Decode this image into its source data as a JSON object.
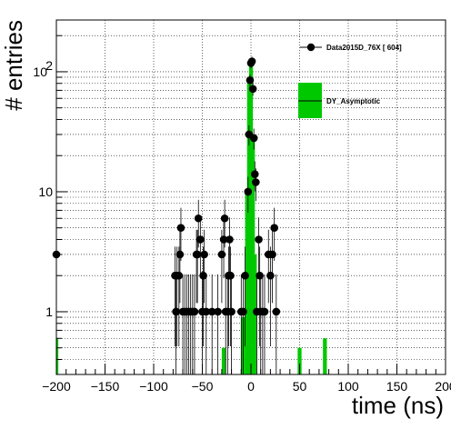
{
  "chart_data": {
    "type": "scatter",
    "xlabel": "time (ns)",
    "ylabel": "# entries",
    "xlim": [
      -200,
      200
    ],
    "ylim": [
      0.3,
      270
    ],
    "log_y": true,
    "grid": true,
    "x_ticks": [
      -200,
      -150,
      -100,
      -50,
      0,
      50,
      100,
      150,
      200
    ],
    "y_ticks": [
      {
        "value": 1,
        "label": "1"
      },
      {
        "value": 10,
        "label": "10"
      },
      {
        "value": 100,
        "label": "10",
        "exp": "2"
      }
    ],
    "legend_position": "top-right",
    "legend": [
      {
        "label": "Data2015D_76X [      604]",
        "kind": "data"
      },
      {
        "label": "DY_Asymptotic",
        "kind": "mc"
      }
    ],
    "series": [
      {
        "name": "Data2015D_76X",
        "kind": "points",
        "color": "#000000",
        "points": [
          {
            "x": -200,
            "y": 3
          },
          {
            "x": -78,
            "y": 2
          },
          {
            "x": -77,
            "y": 1
          },
          {
            "x": -76,
            "y": 2
          },
          {
            "x": -74,
            "y": 2
          },
          {
            "x": -73,
            "y": 3
          },
          {
            "x": -72,
            "y": 5
          },
          {
            "x": -70,
            "y": 1
          },
          {
            "x": -68,
            "y": 1
          },
          {
            "x": -66,
            "y": 1
          },
          {
            "x": -64,
            "y": 1
          },
          {
            "x": -62,
            "y": 1
          },
          {
            "x": -60,
            "y": 1
          },
          {
            "x": -58,
            "y": 1
          },
          {
            "x": -56,
            "y": 3
          },
          {
            "x": -55,
            "y": 3
          },
          {
            "x": -54,
            "y": 6
          },
          {
            "x": -52,
            "y": 4
          },
          {
            "x": -50,
            "y": 1
          },
          {
            "x": -49,
            "y": 2
          },
          {
            "x": -48,
            "y": 3
          },
          {
            "x": -46,
            "y": 1
          },
          {
            "x": -40,
            "y": 1
          },
          {
            "x": -34,
            "y": 1
          },
          {
            "x": -30,
            "y": 3
          },
          {
            "x": -28,
            "y": 4
          },
          {
            "x": -27,
            "y": 6
          },
          {
            "x": -26,
            "y": 1
          },
          {
            "x": -24,
            "y": 1
          },
          {
            "x": -23,
            "y": 2
          },
          {
            "x": -22,
            "y": 4
          },
          {
            "x": -21,
            "y": 2
          },
          {
            "x": -20,
            "y": 1
          },
          {
            "x": -10,
            "y": 1
          },
          {
            "x": -8,
            "y": 1
          },
          {
            "x": -6,
            "y": 2
          },
          {
            "x": -3,
            "y": 10
          },
          {
            "x": -2,
            "y": 30
          },
          {
            "x": -1,
            "y": 85
          },
          {
            "x": 0,
            "y": 118
          },
          {
            "x": 1,
            "y": 122
          },
          {
            "x": 2,
            "y": 72
          },
          {
            "x": 3,
            "y": 28
          },
          {
            "x": 4,
            "y": 14
          },
          {
            "x": 5,
            "y": 12
          },
          {
            "x": 6,
            "y": 1
          },
          {
            "x": 8,
            "y": 4
          },
          {
            "x": 9,
            "y": 2
          },
          {
            "x": 10,
            "y": 1
          },
          {
            "x": 12,
            "y": 1
          },
          {
            "x": 14,
            "y": 1
          },
          {
            "x": 18,
            "y": 3
          },
          {
            "x": 20,
            "y": 2
          },
          {
            "x": 22,
            "y": 3
          },
          {
            "x": 24,
            "y": 5
          },
          {
            "x": 26,
            "y": 1
          }
        ]
      },
      {
        "name": "DY_Asymptotic",
        "kind": "histogram",
        "color": "#00c800",
        "bin_width": 4,
        "bins": [
          {
            "x": -200,
            "y": 0.6
          },
          {
            "x": -28,
            "y": 0.5
          },
          {
            "x": -8,
            "y": 0.9
          },
          {
            "x": -4,
            "y": 10
          },
          {
            "x": -2,
            "y": 80
          },
          {
            "x": 0,
            "y": 110
          },
          {
            "x": 2,
            "y": 30
          },
          {
            "x": 4,
            "y": 3
          },
          {
            "x": 50,
            "y": 0.5
          },
          {
            "x": 76,
            "y": 0.6
          }
        ]
      }
    ]
  }
}
